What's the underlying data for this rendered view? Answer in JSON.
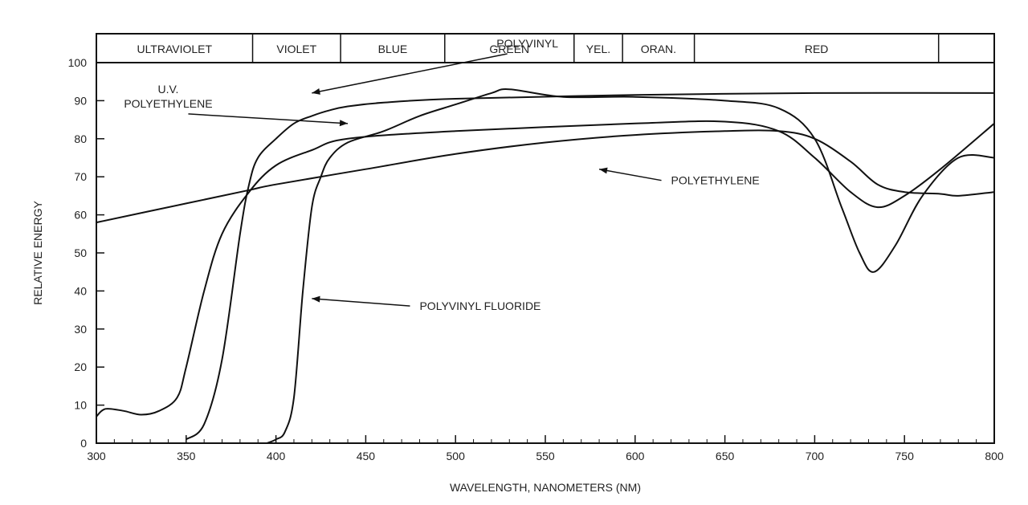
{
  "chart_data": {
    "type": "line",
    "xlabel": "WAVELENGTH, NANOMETERS (NM)",
    "ylabel": "RELATIVE ENERGY",
    "xlim": [
      300,
      800
    ],
    "ylim": [
      0,
      100
    ],
    "x_ticks": [
      "300",
      "350",
      "400",
      "450",
      "500",
      "550",
      "600",
      "650",
      "700",
      "750",
      "800"
    ],
    "y_ticks": [
      "0",
      "10",
      "20",
      "30",
      "40",
      "50",
      "60",
      "70",
      "80",
      "90",
      "100"
    ],
    "grid": false,
    "spectrum_bands": [
      {
        "label": "ULTRAVIOLET",
        "start": 300,
        "end": 387
      },
      {
        "label": "VIOLET",
        "start": 387,
        "end": 436
      },
      {
        "label": "BLUE",
        "start": 436,
        "end": 494
      },
      {
        "label": "GREEN",
        "start": 494,
        "end": 566
      },
      {
        "label": "YEL.",
        "start": 566,
        "end": 593
      },
      {
        "label": "ORAN.",
        "start": 593,
        "end": 633
      },
      {
        "label": "RED",
        "start": 633,
        "end": 769
      },
      {
        "label": "",
        "start": 769,
        "end": 800
      }
    ],
    "series": [
      {
        "name": "POLYVINYL",
        "x": [
          350,
          360,
          370,
          380,
          385,
          390,
          400,
          410,
          420,
          430,
          440,
          460,
          500,
          600,
          700,
          800
        ],
        "y": [
          1,
          5,
          22,
          55,
          68,
          75,
          80,
          84,
          86,
          87.5,
          88.5,
          89.5,
          90.5,
          91.5,
          92,
          92
        ]
      },
      {
        "name": "U.V. POLYETHYLENE",
        "x": [
          300,
          305,
          315,
          325,
          335,
          345,
          350,
          360,
          370,
          385,
          400,
          420,
          440,
          500,
          600,
          650,
          680,
          700,
          720,
          735,
          750,
          770,
          800
        ],
        "y": [
          7,
          9,
          8.5,
          7.5,
          8.5,
          12,
          20,
          40,
          55,
          66,
          73,
          77,
          80,
          82,
          84,
          84.5,
          82,
          75,
          66,
          62,
          65,
          72,
          84
        ]
      },
      {
        "name": "POLYETHYLENE",
        "x": [
          300,
          350,
          385,
          400,
          450,
          500,
          550,
          600,
          650,
          680,
          700,
          720,
          735,
          750,
          770,
          780,
          800
        ],
        "y": [
          58,
          63,
          66.5,
          68,
          72,
          76,
          79,
          81,
          82,
          82,
          80,
          74,
          68,
          66,
          65.5,
          65,
          66
        ]
      },
      {
        "name": "POLYVINYL FLUORIDE",
        "x": [
          395,
          400,
          405,
          410,
          415,
          420,
          425,
          430,
          440,
          460,
          480,
          500,
          520,
          530,
          560,
          600,
          650,
          680,
          700,
          715,
          725,
          733,
          745,
          760,
          780,
          800
        ],
        "y": [
          0,
          1,
          3,
          12,
          40,
          62,
          70,
          75,
          79,
          82,
          86,
          89,
          92,
          93,
          91,
          91,
          90,
          88,
          80,
          62,
          50,
          45,
          52,
          65,
          75,
          75
        ]
      }
    ],
    "annotations": [
      {
        "lines": [
          "POLYVINYL"
        ],
        "x": 540,
        "y": 104,
        "anchor": "middle",
        "arrow_to": {
          "x": 420,
          "y": 92
        }
      },
      {
        "lines": [
          "U.V.",
          "POLYETHYLENE"
        ],
        "x": 340,
        "y": 92,
        "anchor": "middle",
        "arrow_to": {
          "x": 440,
          "y": 84
        }
      },
      {
        "lines": [
          "POLYETHYLENE"
        ],
        "x": 620,
        "y": 68,
        "anchor": "start",
        "arrow_to": {
          "x": 580,
          "y": 72
        }
      },
      {
        "lines": [
          "POLYVINYL FLUORIDE"
        ],
        "x": 480,
        "y": 35,
        "anchor": "start",
        "arrow_to": {
          "x": 420,
          "y": 38
        }
      }
    ]
  }
}
